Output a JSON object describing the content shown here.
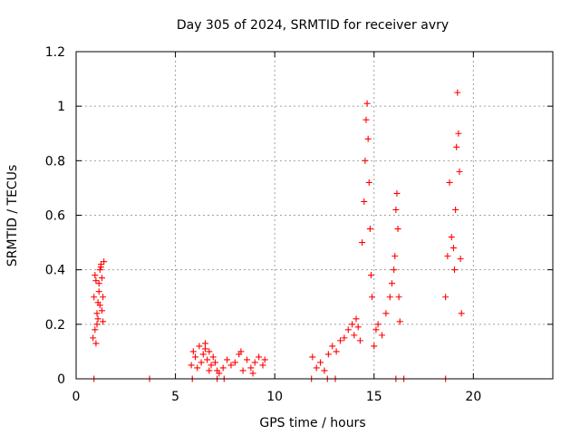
{
  "chart_data": {
    "type": "scatter",
    "title": "Day 305 of 2024, SRMTID for receiver avry",
    "xlabel": "GPS time / hours",
    "ylabel": "SRMTID / TECUs",
    "xlim": [
      0,
      24
    ],
    "ylim": [
      0,
      1.2
    ],
    "xticks": [
      0,
      5,
      10,
      15,
      20
    ],
    "xtick_labels": [
      "0",
      "5",
      "10",
      "15",
      "20"
    ],
    "yticks": [
      0,
      0.2,
      0.4,
      0.6,
      0.8,
      1.0,
      1.2
    ],
    "ytick_labels": [
      "0",
      "0.2",
      "0.4",
      "0.6",
      "0.8",
      "1",
      "1.2"
    ],
    "grid": true,
    "marker": "+",
    "series": [
      {
        "name": "SRMTID",
        "color": "#ff0000",
        "x": [
          0.85,
          0.9,
          0.95,
          1.0,
          1.05,
          1.1,
          1.15,
          1.2,
          1.25,
          1.3,
          1.35,
          1.4,
          1.0,
          1.1,
          1.2,
          1.3,
          0.95,
          1.05,
          1.15,
          1.25,
          1.35,
          5.8,
          5.9,
          6.0,
          6.1,
          6.2,
          6.3,
          6.4,
          6.5,
          6.6,
          6.7,
          6.8,
          6.9,
          7.0,
          7.1,
          7.2,
          7.4,
          7.6,
          7.8,
          8.0,
          8.2,
          8.4,
          8.6,
          8.8,
          9.0,
          9.2,
          9.4,
          9.5,
          6.5,
          6.7,
          8.3,
          8.9,
          11.9,
          12.1,
          12.3,
          12.5,
          12.7,
          12.9,
          13.1,
          13.3,
          13.5,
          13.7,
          13.9,
          14.0,
          14.1,
          14.2,
          14.3,
          14.4,
          14.5,
          14.55,
          14.6,
          14.65,
          14.7,
          14.75,
          14.8,
          14.85,
          14.9,
          15.0,
          15.1,
          15.2,
          15.4,
          15.6,
          15.8,
          15.9,
          16.0,
          16.05,
          16.1,
          16.15,
          16.2,
          16.25,
          16.3,
          18.6,
          18.7,
          18.8,
          18.9,
          19.0,
          19.05,
          19.1,
          19.15,
          19.2,
          19.25,
          19.3,
          19.35,
          19.4,
          0.9,
          3.7,
          5.85,
          7.1,
          7.45,
          11.85,
          12.65,
          13.05,
          16.1,
          16.5,
          18.6
        ],
        "y": [
          0.15,
          0.3,
          0.38,
          0.36,
          0.2,
          0.28,
          0.32,
          0.4,
          0.42,
          0.25,
          0.3,
          0.43,
          0.13,
          0.22,
          0.27,
          0.37,
          0.18,
          0.24,
          0.35,
          0.41,
          0.21,
          0.05,
          0.1,
          0.08,
          0.04,
          0.12,
          0.06,
          0.09,
          0.13,
          0.07,
          0.1,
          0.05,
          0.08,
          0.06,
          0.03,
          0.02,
          0.04,
          0.07,
          0.05,
          0.06,
          0.09,
          0.03,
          0.07,
          0.04,
          0.06,
          0.08,
          0.05,
          0.07,
          0.11,
          0.03,
          0.1,
          0.02,
          0.08,
          0.04,
          0.06,
          0.03,
          0.09,
          0.12,
          0.1,
          0.14,
          0.15,
          0.18,
          0.2,
          0.16,
          0.22,
          0.19,
          0.14,
          0.5,
          0.65,
          0.8,
          0.95,
          1.01,
          0.88,
          0.72,
          0.55,
          0.38,
          0.3,
          0.12,
          0.18,
          0.2,
          0.16,
          0.24,
          0.3,
          0.35,
          0.4,
          0.45,
          0.62,
          0.68,
          0.55,
          0.3,
          0.21,
          0.3,
          0.45,
          0.72,
          0.52,
          0.48,
          0.4,
          0.62,
          0.85,
          1.05,
          0.9,
          0.76,
          0.44,
          0.24,
          0,
          0,
          0,
          0,
          0,
          0,
          0,
          0,
          0,
          0,
          0
        ]
      }
    ]
  }
}
